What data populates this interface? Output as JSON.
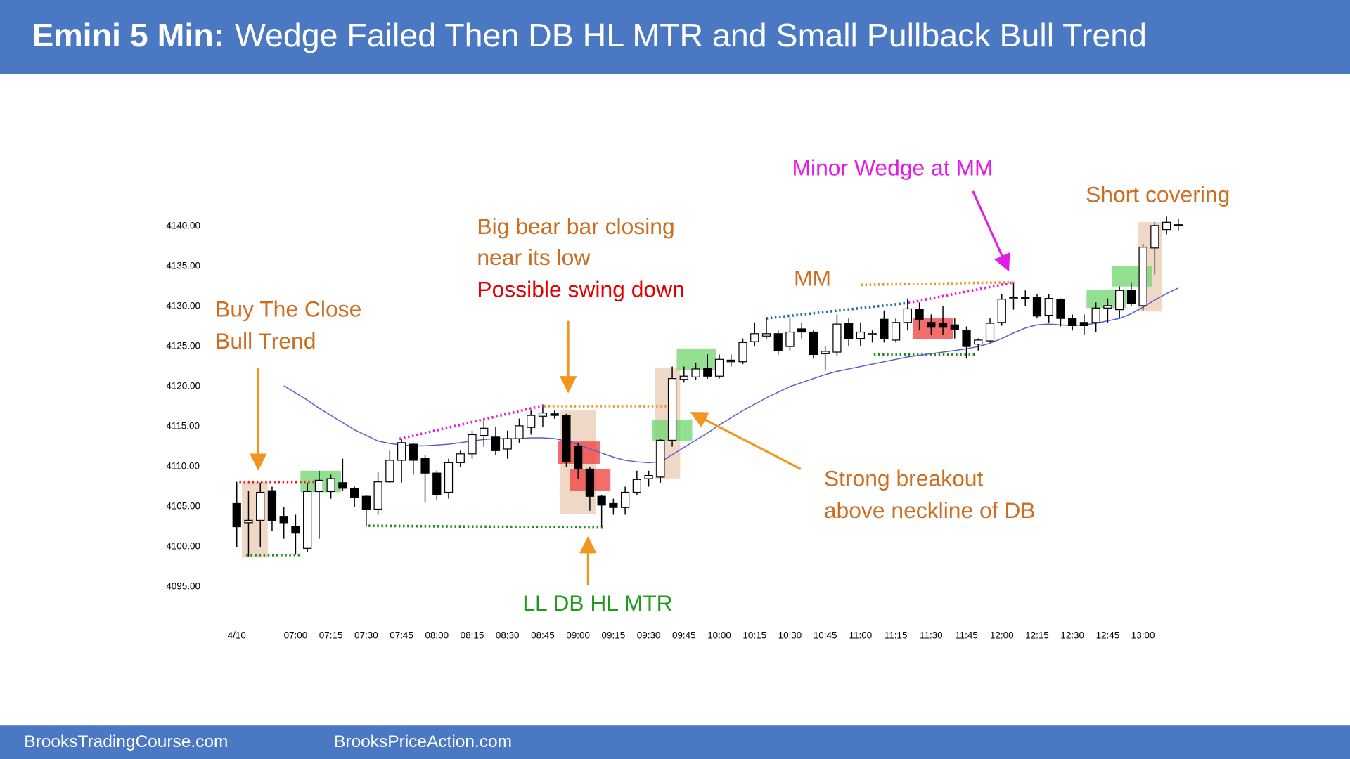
{
  "header": {
    "title_prefix": "Emini 5 Min:",
    "title": "Wedge Failed Then DB HL MTR and Small Pullback Bull Trend"
  },
  "chart_data": {
    "type": "candlestick",
    "categories": [
      "4/10",
      null,
      null,
      null,
      null,
      "07:00",
      null,
      null,
      "07:15",
      null,
      null,
      "07:30",
      null,
      null,
      "07:45",
      null,
      null,
      "08:00",
      null,
      null,
      "08:15",
      null,
      null,
      "08:30",
      null,
      null,
      "08:45",
      null,
      null,
      "09:00",
      null,
      null,
      "09:15",
      null,
      null,
      "09:30",
      null,
      null,
      "09:45",
      null,
      null,
      "10:00",
      null,
      null,
      "10:15",
      null,
      null,
      "10:30",
      null,
      null,
      "10:45",
      null,
      null,
      "11:00",
      null,
      null,
      "11:15",
      null,
      null,
      "11:30",
      null,
      null,
      "11:45",
      null,
      null,
      "12:00",
      null,
      null,
      "12:15",
      null,
      null,
      "12:30",
      null,
      null,
      "12:45",
      null,
      null,
      "13:00",
      null,
      null,
      null
    ],
    "open": [
      4105.4,
      4103,
      4103.3,
      4107,
      4103.8,
      4102.5,
      4099.8,
      4106.9,
      4106.9,
      4108,
      4107.3,
      4106.3,
      4104.7,
      4108.1,
      4110.8,
      4112.8,
      4111,
      4109.2,
      4106.8,
      4110.5,
      4111.6,
      4113.9,
      4113.7,
      4112.2,
      4113.5,
      4114.9,
      4116.3,
      4116.6,
      4116.4,
      4112.5,
      4109.7,
      4106.3,
      4105.4,
      4104.9,
      4106.8,
      4108.5,
      4108.7,
      4113.3,
      4120.9,
      4121.2,
      4122.3,
      4121.3,
      4123.1,
      4123.1,
      4125.6,
      4126.3,
      4126.6,
      4125,
      4127.2,
      4126.8,
      4124.1,
      4124.3,
      4127.9,
      4126,
      4126.5,
      4128.4,
      4125.8,
      4128,
      4129.6,
      4128,
      4127.9,
      4127.7,
      4127,
      4125.3,
      4125.7,
      4128,
      4131,
      4131.1,
      4131.1,
      4128.9,
      4130.9,
      4128.5,
      4128,
      4128,
      4129.8,
      4129.6,
      4132,
      4130.1,
      4137.3,
      4139.6,
      4140.2
    ],
    "high": [
      4108.1,
      4107,
      4108,
      4107.5,
      4105,
      4104,
      4108,
      4109.5,
      4109,
      4111,
      4107.5,
      4106.5,
      4109.4,
      4112,
      4113.5,
      4113,
      4111.5,
      4109.5,
      4111,
      4112,
      4114.5,
      4116,
      4115,
      4114.5,
      4116,
      4117,
      4117.5,
      4117,
      4116.6,
      4113,
      4110,
      4106.5,
      4106,
      4107.5,
      4109.5,
      4109.5,
      4113.5,
      4122.5,
      4122.5,
      4123,
      4124,
      4124,
      4124,
      4126,
      4128,
      4128.5,
      4127,
      4128.5,
      4128,
      4127,
      4125,
      4129,
      4128.5,
      4128,
      4127,
      4129.5,
      4128.5,
      4131,
      4130.5,
      4129,
      4130,
      4128.5,
      4127.5,
      4126,
      4128.5,
      4131.5,
      4133,
      4132,
      4131.5,
      4131.5,
      4131,
      4129,
      4129,
      4130.5,
      4131,
      4132.5,
      4133,
      4137.8,
      4140.5,
      4141.2,
      4141
    ],
    "low": [
      4100,
      4098.8,
      4100,
      4102,
      4101,
      4099,
      4099.3,
      4101,
      4106,
      4107,
      4105,
      4102.5,
      4104,
      4108,
      4108,
      4109,
      4105.5,
      4105.8,
      4106,
      4110,
      4111,
      4112.5,
      4111.5,
      4111,
      4113,
      4114,
      4115,
      4116,
      4110,
      4108.5,
      4104.5,
      4102.5,
      4104,
      4104,
      4106.5,
      4107.5,
      4108,
      4112.5,
      4120.5,
      4120.8,
      4121,
      4121,
      4122.5,
      4122.8,
      4125,
      4126,
      4124,
      4124.5,
      4126,
      4123.5,
      4122,
      4123.8,
      4125,
      4125,
      4125.5,
      4125.5,
      4125.5,
      4127,
      4127,
      4126.5,
      4126.5,
      4126,
      4123.5,
      4124.5,
      4125.5,
      4127.6,
      4129.6,
      4130,
      4128.5,
      4128,
      4127.5,
      4127,
      4126.5,
      4126.8,
      4128,
      4128.5,
      4130,
      4129.5,
      4134,
      4139,
      4139.5
    ],
    "close": [
      4102.5,
      4103.3,
      4106.8,
      4103.3,
      4103,
      4101.7,
      4106.9,
      4108.3,
      4108.5,
      4107.3,
      4106.2,
      4104.7,
      4108.1,
      4110.8,
      4113,
      4110.8,
      4109.2,
      4106.5,
      4110.5,
      4111.6,
      4114,
      4114.8,
      4112,
      4113.5,
      4115.1,
      4116.4,
      4116.7,
      4116.4,
      4110.6,
      4109.7,
      4106.3,
      4105.2,
      4104.9,
      4106.8,
      4108.4,
      4108.9,
      4113.3,
      4121,
      4121.3,
      4122.2,
      4121.3,
      4123.4,
      4123.3,
      4125.5,
      4126.6,
      4126.6,
      4124.5,
      4126.8,
      4126.8,
      4124,
      4124.4,
      4127.8,
      4126,
      4126.8,
      4126.6,
      4126,
      4128,
      4129.7,
      4128.4,
      4127.4,
      4127.4,
      4127.1,
      4125,
      4125.8,
      4127.9,
      4130.9,
      4131.1,
      4131,
      4128.8,
      4131,
      4128.5,
      4127.6,
      4127.6,
      4129.8,
      4130.1,
      4132,
      4130.4,
      4137.4,
      4140.1,
      4140.5,
      4140.1
    ],
    "up_color": "#ffffff",
    "down_color": "#000000",
    "ma": {
      "color": "#5a5ad2",
      "values": [
        null,
        null,
        null,
        null,
        4120.1,
        4119.2,
        4118.3,
        4117.3,
        4116.4,
        4115.5,
        4114.6,
        4113.9,
        4113.2,
        4112.9,
        4112.7,
        4112.6,
        4112.6,
        4112.7,
        4112.8,
        4113.0,
        4113.2,
        4113.4,
        4113.5,
        4113.5,
        4113.5,
        4113.6,
        4113.6,
        4113.5,
        4113.2,
        4112.8,
        4112.2,
        4111.7,
        4111.2,
        4110.8,
        4110.6,
        4110.5,
        4110.6,
        4111.5,
        4112.4,
        4113.3,
        4114.2,
        4115.2,
        4116.1,
        4117.0,
        4117.8,
        4118.6,
        4119.3,
        4120.0,
        4120.5,
        4121.0,
        4121.5,
        4121.9,
        4122.2,
        4122.5,
        4122.8,
        4123.1,
        4123.4,
        4123.7,
        4123.9,
        4124.1,
        4124.3,
        4124.5,
        4124.7,
        4125.0,
        4125.4,
        4126.0,
        4126.7,
        4127.3,
        4127.7,
        4127.8,
        4127.7,
        4127.6,
        4127.7,
        4127.9,
        4128.2,
        4128.5,
        4129.1,
        4129.9,
        4130.8,
        4131.6,
        4132.3
      ]
    },
    "ylim": [
      4093,
      4145
    ],
    "yticks": [
      {
        "value": 4095,
        "label": "4095.00"
      },
      {
        "value": 4100,
        "label": "4100.00"
      },
      {
        "value": 4105,
        "label": "4105.00"
      },
      {
        "value": 4110,
        "label": "4110.00"
      },
      {
        "value": 4115,
        "label": "4115.00"
      },
      {
        "value": 4120,
        "label": "4120.00"
      },
      {
        "value": 4125,
        "label": "4125.00"
      },
      {
        "value": 4130,
        "label": "4130.00"
      },
      {
        "value": 4135,
        "label": "4135.00"
      },
      {
        "value": 4140,
        "label": "4140.00"
      }
    ],
    "annotations": [
      {
        "text": "Buy The Close",
        "color": "#cc6d1f"
      },
      {
        "text": "Bull Trend",
        "color": "#cc6d1f"
      },
      {
        "text": "Big bear bar closing",
        "color": "#cc6d1f"
      },
      {
        "text": "near its low",
        "color": "#cc6d1f"
      },
      {
        "text": "Possible swing down",
        "color": "#e00000"
      },
      {
        "text": "MM",
        "color": "#cc6d1f"
      },
      {
        "text": "Minor Wedge at MM",
        "color": "#e31be3"
      },
      {
        "text": "Short covering",
        "color": "#cc6d1f"
      },
      {
        "text": "Strong breakout",
        "color": "#cc6d1f"
      },
      {
        "text": "above neckline of DB",
        "color": "#cc6d1f"
      },
      {
        "text": "LL DB HL MTR",
        "color": "#1f9a1f"
      }
    ]
  },
  "footer": {
    "left": "BrooksTradingCourse.com",
    "right": "BrooksPriceAction.com"
  }
}
